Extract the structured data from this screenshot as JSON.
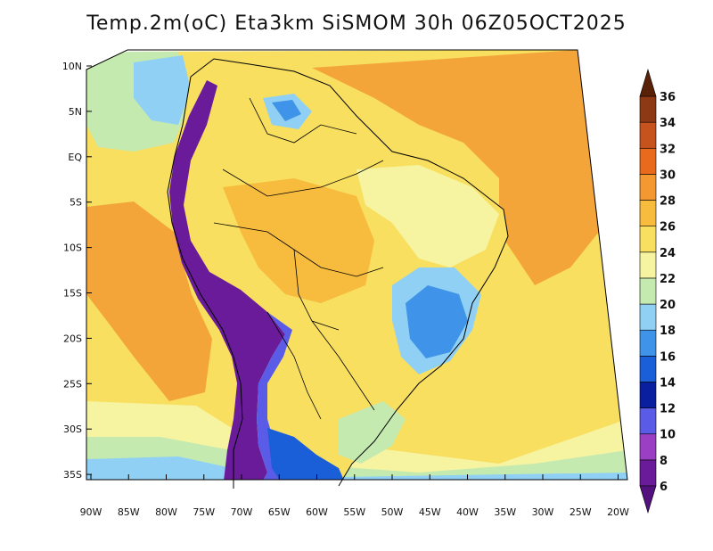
{
  "title": "Temp.2m(oC) Eta3km SiSMOM 30h 06Z05OCT2025",
  "map": {
    "lat_labels": [
      "10N",
      "5N",
      "EQ",
      "5S",
      "10S",
      "15S",
      "20S",
      "25S",
      "30S",
      "35S"
    ],
    "lat_values": [
      10,
      5,
      0,
      -5,
      -10,
      -15,
      -20,
      -25,
      -30,
      -35
    ],
    "lon_labels": [
      "90W",
      "85W",
      "80W",
      "75W",
      "70W",
      "65W",
      "60W",
      "55W",
      "50W",
      "45W",
      "40W",
      "35W",
      "30W",
      "25W",
      "20W"
    ],
    "lon_values": [
      -90,
      -85,
      -80,
      -75,
      -70,
      -65,
      -60,
      -55,
      -50,
      -45,
      -40,
      -35,
      -30,
      -25,
      -20
    ],
    "lon_range": [
      -91,
      -20
    ],
    "lat_range": [
      -38,
      11
    ]
  },
  "colorbar": {
    "levels": [
      6,
      8,
      10,
      12,
      14,
      16,
      18,
      20,
      22,
      24,
      26,
      28,
      30,
      32,
      34,
      36
    ],
    "labels": [
      "6",
      "8",
      "10",
      "12",
      "14",
      "16",
      "18",
      "20",
      "22",
      "24",
      "26",
      "28",
      "30",
      "32",
      "34",
      "36"
    ],
    "colors": [
      "#6a1b9a",
      "#9b3fc4",
      "#5a5ce8",
      "#0a1fa0",
      "#1a5fd8",
      "#3f93e8",
      "#8fd0f4",
      "#c4eab0",
      "#f6f4a0",
      "#f8df60",
      "#f7bb3e",
      "#f49832",
      "#ea6a1d",
      "#c6521e",
      "#8e3915",
      "#5a2109"
    ],
    "under_color": "#52117d",
    "over_color": "#5a2109"
  }
}
